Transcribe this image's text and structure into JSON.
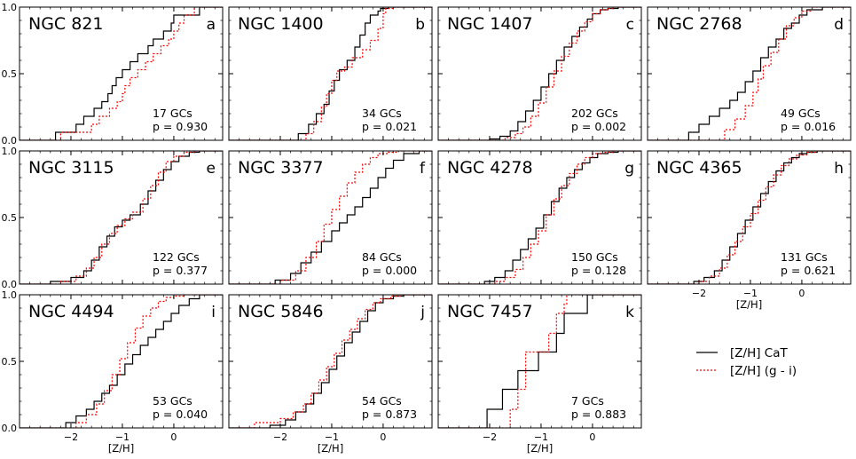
{
  "chart_data": {
    "type": "line",
    "step": true,
    "xlabel": "[Z/H]",
    "xlim": [
      -3.0,
      0.95
    ],
    "ylim": [
      0.0,
      1.0
    ],
    "x_ticks": [
      -2,
      -1,
      0
    ],
    "x_tick_labels": [
      "−2",
      "−1",
      "0"
    ],
    "y_ticks": [
      0.0,
      0.5,
      1.0
    ],
    "y_tick_labels": [
      "0.0",
      "0.5",
      "1.0"
    ],
    "legend": {
      "location": "lower-right",
      "entries": [
        {
          "label": "[Z/H] CaT",
          "color": "#000000",
          "style": "solid"
        },
        {
          "label": "[Z/H] (g - i)",
          "color": "#ff0000",
          "style": "dotted"
        }
      ]
    },
    "panels": [
      {
        "name": "NGC 821",
        "letter": "a",
        "n_label": "17 GCs",
        "p_label": "p = 0.930",
        "series": [
          {
            "name": "[Z/H] CaT",
            "x": [
              -2.3,
              -1.9,
              -1.75,
              -1.55,
              -1.4,
              -1.28,
              -1.2,
              -1.12,
              -1.0,
              -0.85,
              -0.7,
              -0.5,
              -0.4,
              -0.2,
              -0.05,
              0.0,
              0.5
            ],
            "y": [
              0.06,
              0.12,
              0.18,
              0.24,
              0.29,
              0.35,
              0.41,
              0.47,
              0.53,
              0.59,
              0.65,
              0.71,
              0.76,
              0.82,
              0.88,
              0.94,
              1.0
            ]
          },
          {
            "name": "[Z/H] (g - i)",
            "x": [
              -2.2,
              -1.6,
              -1.45,
              -1.25,
              -1.1,
              -1.0,
              -0.95,
              -0.85,
              -0.7,
              -0.55,
              -0.4,
              -0.25,
              -0.1,
              0.0,
              0.1,
              0.2,
              0.4
            ],
            "y": [
              0.06,
              0.12,
              0.18,
              0.24,
              0.29,
              0.35,
              0.41,
              0.47,
              0.53,
              0.59,
              0.65,
              0.71,
              0.76,
              0.82,
              0.88,
              0.94,
              1.0
            ]
          }
        ]
      },
      {
        "name": "NGC 1400",
        "letter": "b",
        "n_label": "34 GCs",
        "p_label": "p = 0.021",
        "series": [
          {
            "name": "[Z/H] CaT",
            "x": [
              -1.65,
              -1.45,
              -1.3,
              -1.15,
              -1.05,
              -0.95,
              -0.85,
              -0.7,
              -0.55,
              -0.45,
              -0.35,
              -0.25,
              -0.1,
              -0.05,
              0.1
            ],
            "y": [
              0.05,
              0.12,
              0.2,
              0.27,
              0.37,
              0.45,
              0.53,
              0.6,
              0.7,
              0.79,
              0.88,
              0.94,
              0.97,
              0.99,
              1.0
            ]
          },
          {
            "name": "[Z/H] (g - i)",
            "x": [
              -1.5,
              -1.35,
              -1.2,
              -1.1,
              -1.0,
              -0.9,
              -0.75,
              -0.6,
              -0.4,
              -0.25,
              -0.1,
              0.0,
              0.05,
              0.2
            ],
            "y": [
              0.05,
              0.14,
              0.25,
              0.35,
              0.45,
              0.52,
              0.55,
              0.62,
              0.68,
              0.75,
              0.84,
              0.95,
              0.99,
              1.0
            ]
          }
        ]
      },
      {
        "name": "NGC 1407",
        "letter": "c",
        "n_label": "202 GCs",
        "p_label": "p = 0.002",
        "series": [
          {
            "name": "[Z/H] CaT",
            "x": [
              -2.0,
              -1.8,
              -1.6,
              -1.45,
              -1.3,
              -1.15,
              -1.0,
              -0.85,
              -0.7,
              -0.55,
              -0.4,
              -0.25,
              -0.1,
              0.0,
              0.15,
              0.3,
              0.5
            ],
            "y": [
              0.01,
              0.03,
              0.07,
              0.14,
              0.22,
              0.3,
              0.4,
              0.5,
              0.6,
              0.7,
              0.78,
              0.85,
              0.91,
              0.95,
              0.98,
              0.99,
              1.0
            ]
          },
          {
            "name": "[Z/H] (g - i)",
            "x": [
              -1.7,
              -1.5,
              -1.35,
              -1.2,
              -1.05,
              -0.9,
              -0.75,
              -0.6,
              -0.45,
              -0.3,
              -0.15,
              0.0,
              0.15,
              0.3,
              0.4
            ],
            "y": [
              0.02,
              0.05,
              0.1,
              0.18,
              0.28,
              0.4,
              0.52,
              0.63,
              0.73,
              0.82,
              0.89,
              0.95,
              0.98,
              0.99,
              1.0
            ]
          }
        ]
      },
      {
        "name": "NGC 2768",
        "letter": "d",
        "n_label": "49 GCs",
        "p_label": "p = 0.016",
        "series": [
          {
            "name": "[Z/H] CaT",
            "x": [
              -2.2,
              -2.0,
              -1.8,
              -1.6,
              -1.4,
              -1.25,
              -1.1,
              -0.95,
              -0.8,
              -0.65,
              -0.5,
              -0.35,
              -0.2,
              -0.05,
              0.1,
              0.4
            ],
            "y": [
              0.06,
              0.12,
              0.18,
              0.24,
              0.3,
              0.36,
              0.44,
              0.52,
              0.62,
              0.7,
              0.76,
              0.84,
              0.88,
              0.94,
              0.98,
              1.0
            ]
          },
          {
            "name": "[Z/H] (g - i)",
            "x": [
              -1.5,
              -1.3,
              -1.1,
              -0.95,
              -0.85,
              -0.75,
              -0.6,
              -0.45,
              -0.3,
              -0.15,
              0.0,
              0.2
            ],
            "y": [
              0.08,
              0.16,
              0.26,
              0.36,
              0.46,
              0.56,
              0.66,
              0.76,
              0.86,
              0.92,
              0.97,
              1.0
            ]
          }
        ]
      },
      {
        "name": "NGC 3115",
        "letter": "e",
        "n_label": "122 GCs",
        "p_label": "p = 0.377",
        "series": [
          {
            "name": "[Z/H] CaT",
            "x": [
              -2.4,
              -2.0,
              -1.75,
              -1.6,
              -1.45,
              -1.3,
              -1.15,
              -1.0,
              -0.85,
              -0.65,
              -0.5,
              -0.35,
              -0.2,
              -0.05,
              0.1,
              0.3,
              0.5
            ],
            "y": [
              0.02,
              0.05,
              0.1,
              0.18,
              0.28,
              0.36,
              0.43,
              0.48,
              0.52,
              0.6,
              0.7,
              0.78,
              0.86,
              0.92,
              0.96,
              0.99,
              1.0
            ]
          },
          {
            "name": "[Z/H] (g - i)",
            "x": [
              -2.2,
              -1.9,
              -1.7,
              -1.55,
              -1.4,
              -1.25,
              -1.1,
              -0.95,
              -0.8,
              -0.6,
              -0.45,
              -0.3,
              -0.15,
              0.0,
              0.2,
              0.4
            ],
            "y": [
              0.02,
              0.06,
              0.12,
              0.2,
              0.3,
              0.38,
              0.44,
              0.49,
              0.54,
              0.64,
              0.74,
              0.84,
              0.92,
              0.96,
              0.99,
              1.0
            ]
          }
        ]
      },
      {
        "name": "NGC 3377",
        "letter": "f",
        "n_label": "84 GCs",
        "p_label": "p = 0.000",
        "series": [
          {
            "name": "[Z/H] CaT",
            "x": [
              -2.1,
              -1.8,
              -1.6,
              -1.4,
              -1.2,
              -1.0,
              -0.85,
              -0.7,
              -0.55,
              -0.4,
              -0.25,
              -0.1,
              0.05,
              0.2,
              0.4,
              0.7
            ],
            "y": [
              0.03,
              0.08,
              0.16,
              0.24,
              0.32,
              0.4,
              0.46,
              0.52,
              0.58,
              0.65,
              0.72,
              0.8,
              0.87,
              0.93,
              0.98,
              1.0
            ]
          },
          {
            "name": "[Z/H] (g - i)",
            "x": [
              -2.0,
              -1.7,
              -1.5,
              -1.3,
              -1.15,
              -1.0,
              -0.85,
              -0.7,
              -0.55,
              -0.4,
              -0.25,
              -0.1,
              0.1,
              0.3
            ],
            "y": [
              0.03,
              0.1,
              0.2,
              0.32,
              0.45,
              0.56,
              0.66,
              0.76,
              0.84,
              0.9,
              0.95,
              0.98,
              0.99,
              1.0
            ]
          }
        ]
      },
      {
        "name": "NGC 4278",
        "letter": "g",
        "n_label": "150 GCs",
        "p_label": "p = 0.128",
        "series": [
          {
            "name": "[Z/H] CaT",
            "x": [
              -2.1,
              -1.9,
              -1.7,
              -1.55,
              -1.4,
              -1.25,
              -1.1,
              -0.95,
              -0.8,
              -0.65,
              -0.5,
              -0.35,
              -0.2,
              -0.05,
              0.1,
              0.3,
              0.5
            ],
            "y": [
              0.02,
              0.05,
              0.1,
              0.18,
              0.26,
              0.34,
              0.42,
              0.52,
              0.62,
              0.72,
              0.8,
              0.86,
              0.91,
              0.95,
              0.98,
              0.99,
              1.0
            ]
          },
          {
            "name": "[Z/H] (g - i)",
            "x": [
              -1.9,
              -1.7,
              -1.5,
              -1.35,
              -1.2,
              -1.05,
              -0.9,
              -0.75,
              -0.6,
              -0.45,
              -0.3,
              -0.15,
              0.0,
              0.2,
              0.4
            ],
            "y": [
              0.02,
              0.05,
              0.11,
              0.2,
              0.3,
              0.4,
              0.52,
              0.64,
              0.74,
              0.83,
              0.9,
              0.95,
              0.98,
              0.99,
              1.0
            ]
          }
        ]
      },
      {
        "name": "NGC 4365",
        "letter": "h",
        "n_label": "131 GCs",
        "p_label": "p = 0.621",
        "series": [
          {
            "name": "[Z/H] CaT",
            "x": [
              -2.1,
              -1.9,
              -1.7,
              -1.55,
              -1.4,
              -1.25,
              -1.1,
              -0.95,
              -0.8,
              -0.65,
              -0.5,
              -0.35,
              -0.2,
              -0.05,
              0.1,
              0.3
            ],
            "y": [
              0.02,
              0.05,
              0.1,
              0.18,
              0.28,
              0.38,
              0.48,
              0.58,
              0.68,
              0.77,
              0.85,
              0.91,
              0.95,
              0.98,
              0.99,
              1.0
            ]
          },
          {
            "name": "[Z/H] (g - i)",
            "x": [
              -2.0,
              -1.8,
              -1.6,
              -1.45,
              -1.3,
              -1.15,
              -1.0,
              -0.85,
              -0.7,
              -0.55,
              -0.4,
              -0.25,
              -0.1,
              0.1,
              0.3
            ],
            "y": [
              0.02,
              0.06,
              0.12,
              0.22,
              0.32,
              0.43,
              0.53,
              0.63,
              0.73,
              0.82,
              0.89,
              0.94,
              0.97,
              0.99,
              1.0
            ]
          }
        ]
      },
      {
        "name": "NGC 4494",
        "letter": "i",
        "n_label": "53 GCs",
        "p_label": "p = 0.040",
        "series": [
          {
            "name": "[Z/H] CaT",
            "x": [
              -2.1,
              -1.9,
              -1.7,
              -1.55,
              -1.4,
              -1.25,
              -1.1,
              -0.95,
              -0.8,
              -0.65,
              -0.5,
              -0.35,
              -0.2,
              -0.05,
              0.1,
              0.3,
              0.5
            ],
            "y": [
              0.04,
              0.09,
              0.14,
              0.2,
              0.26,
              0.32,
              0.4,
              0.48,
              0.55,
              0.62,
              0.68,
              0.74,
              0.8,
              0.86,
              0.92,
              0.97,
              1.0
            ]
          },
          {
            "name": "[Z/H] (g - i)",
            "x": [
              -1.9,
              -1.7,
              -1.5,
              -1.35,
              -1.2,
              -1.05,
              -0.9,
              -0.75,
              -0.6,
              -0.45,
              -0.3,
              -0.15,
              0.0,
              0.2
            ],
            "y": [
              0.04,
              0.1,
              0.18,
              0.28,
              0.4,
              0.52,
              0.64,
              0.75,
              0.84,
              0.9,
              0.95,
              0.98,
              0.99,
              1.0
            ]
          }
        ]
      },
      {
        "name": "NGC 5846",
        "letter": "j",
        "n_label": "54 GCs",
        "p_label": "p = 0.873",
        "series": [
          {
            "name": "[Z/H] CaT",
            "x": [
              -2.2,
              -1.9,
              -1.7,
              -1.5,
              -1.35,
              -1.2,
              -1.05,
              -0.9,
              -0.75,
              -0.6,
              -0.45,
              -0.3,
              -0.15,
              0.0,
              0.2,
              0.4
            ],
            "y": [
              0.02,
              0.06,
              0.12,
              0.18,
              0.26,
              0.34,
              0.44,
              0.54,
              0.64,
              0.72,
              0.8,
              0.88,
              0.94,
              0.97,
              0.99,
              1.0
            ]
          },
          {
            "name": "[Z/H] (g - i)",
            "x": [
              -2.5,
              -2.0,
              -1.75,
              -1.55,
              -1.4,
              -1.25,
              -1.1,
              -0.95,
              -0.8,
              -0.65,
              -0.5,
              -0.35,
              -0.2,
              -0.05,
              0.15,
              0.35
            ],
            "y": [
              0.04,
              0.07,
              0.12,
              0.18,
              0.26,
              0.36,
              0.46,
              0.56,
              0.66,
              0.74,
              0.82,
              0.89,
              0.94,
              0.97,
              0.99,
              1.0
            ]
          }
        ]
      },
      {
        "name": "NGC 7457",
        "letter": "k",
        "n_label": "7 GCs",
        "p_label": "p = 0.883",
        "series": [
          {
            "name": "[Z/H] CaT",
            "x": [
              -2.05,
              -1.75,
              -1.45,
              -1.05,
              -0.7,
              -0.55,
              -0.1
            ],
            "y": [
              0.14,
              0.29,
              0.43,
              0.57,
              0.71,
              0.86,
              1.0
            ]
          },
          {
            "name": "[Z/H] (g - i)",
            "x": [
              -1.6,
              -1.45,
              -1.3,
              -0.85,
              -0.7,
              -0.55,
              -0.5
            ],
            "y": [
              0.14,
              0.29,
              0.57,
              0.71,
              0.86,
              0.93,
              1.0
            ]
          }
        ]
      }
    ]
  }
}
